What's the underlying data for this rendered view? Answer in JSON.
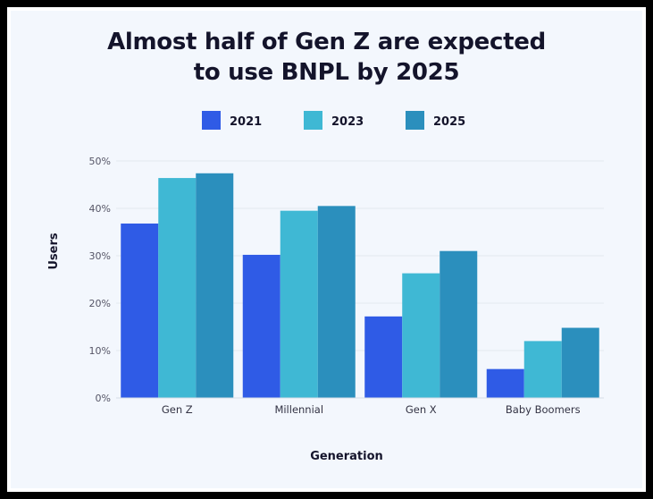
{
  "chart_data": {
    "type": "bar",
    "title_lines": [
      "Almost half of Gen Z are expected",
      "to use BNPL by 2025"
    ],
    "categories": [
      "Gen Z",
      "Millennial",
      "Gen X",
      "Baby Boomers"
    ],
    "series": [
      {
        "name": "2021",
        "values": [
          36.8,
          30.2,
          17.2,
          6.1
        ],
        "color": "#2f5be6"
      },
      {
        "name": "2023",
        "values": [
          46.4,
          39.5,
          26.3,
          12.0
        ],
        "color": "#3fb8d4"
      },
      {
        "name": "2025",
        "values": [
          47.4,
          40.5,
          31.0,
          14.8
        ],
        "color": "#2b8fbd"
      }
    ],
    "yticks": [
      "0%",
      "10%",
      "20%",
      "30%",
      "40%",
      "50%"
    ],
    "ylim": [
      0,
      50
    ],
    "xlabel": "Generation",
    "ylabel": "Users",
    "grid": true,
    "legend_position": "top"
  }
}
